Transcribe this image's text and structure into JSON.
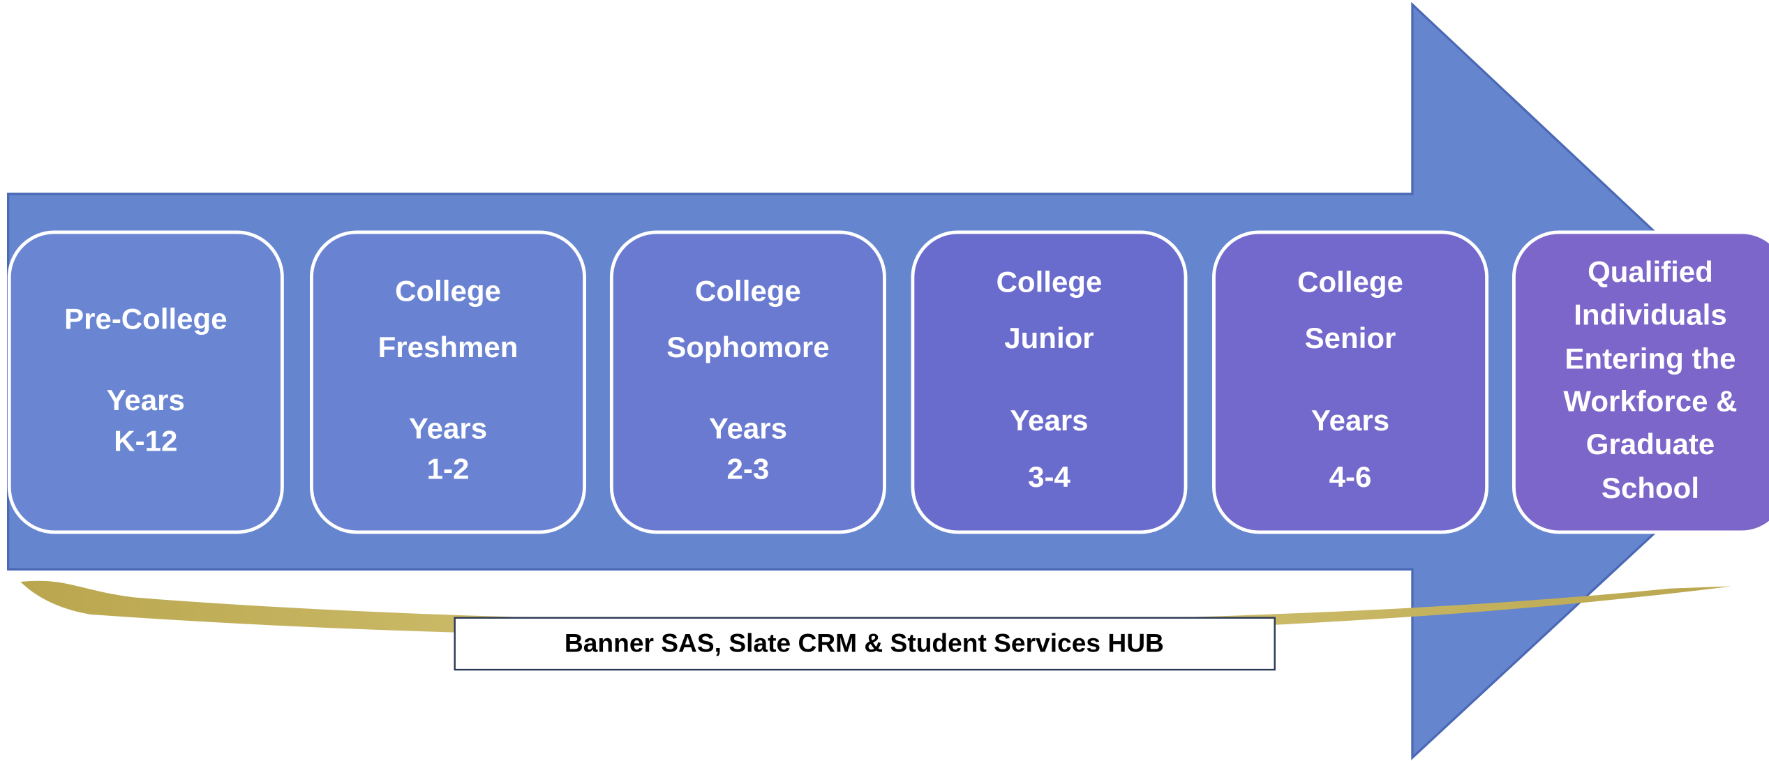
{
  "stages": [
    {
      "title": [
        "Pre-College"
      ],
      "years": [
        "Years",
        "K-12"
      ]
    },
    {
      "title": [
        "College",
        "Freshmen"
      ],
      "years": [
        "Years",
        "1-2"
      ]
    },
    {
      "title": [
        "College",
        "Sophomore"
      ],
      "years": [
        "Years",
        "2-3"
      ]
    },
    {
      "title": [
        "College",
        "Junior"
      ],
      "years": [
        "Years",
        "3-4"
      ]
    },
    {
      "title": [
        "College",
        "Senior"
      ],
      "years": [
        "Years",
        "4-6"
      ]
    },
    {
      "title": [
        "Qualified",
        "Individuals",
        "Entering the",
        "Workforce &",
        "Graduate",
        "School"
      ]
    }
  ],
  "footer": "Banner SAS, Slate CRM & Student Services HUB"
}
